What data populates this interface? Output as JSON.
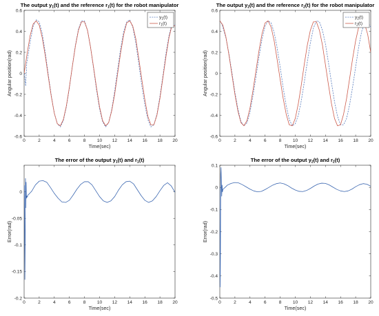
{
  "figure": {
    "background": "#ffffff",
    "colors": {
      "output": "#5b7fbf",
      "reference": "#cc5a4a",
      "error": "#3a66b0",
      "axis": "#262626"
    }
  },
  "chart_data": [
    {
      "type": "line",
      "title": {
        "pre": "The output y",
        "s1": "1",
        "mid": "(t) and the reference r",
        "s2": "1",
        "post": "(t) for the robot manipulator"
      },
      "xlabel": "Time(sec)",
      "ylabel": "Angular position(rad)",
      "xlim": [
        0,
        20
      ],
      "ylim": [
        -0.6,
        0.6
      ],
      "xticks": [
        0,
        2,
        4,
        6,
        8,
        10,
        12,
        14,
        16,
        18,
        20
      ],
      "xticklabels": [
        "0",
        "2",
        "4",
        "6",
        "8",
        "10",
        "12",
        "14",
        "16",
        "18",
        "20"
      ],
      "yticks": [
        -0.6,
        -0.4,
        -0.2,
        0,
        0.2,
        0.4,
        0.6
      ],
      "yticklabels": [
        "-0.6",
        "-0.4",
        "-0.2",
        "0",
        "0.2",
        "0.4",
        "0.6"
      ],
      "legend_position": "top-right",
      "grid": false,
      "series": [
        {
          "name": {
            "base": "y",
            "sub": "1",
            "tail": "(t)"
          },
          "style": "dashed",
          "color": "#5b7fbf",
          "x": [
            0,
            0.1,
            0.2,
            0.35,
            0.5,
            0.8,
            1.2,
            1.6,
            2.0,
            2.4,
            2.8,
            3.2,
            3.6,
            4.0,
            4.4,
            4.8,
            5.2,
            5.6,
            6.0,
            6.4,
            6.8,
            7.2,
            7.6,
            8.0,
            8.4,
            8.8,
            9.2,
            9.6,
            10.0,
            10.4,
            10.8,
            11.2,
            11.6,
            12.0,
            12.4,
            12.8,
            13.2,
            13.6,
            14.0,
            14.4,
            14.8,
            15.2,
            15.6,
            16.0,
            16.4,
            16.8,
            17.2,
            17.6,
            18.0,
            18.4,
            18.8,
            19.2,
            19.6,
            20.0
          ],
          "y": [
            0.02,
            -0.05,
            -0.12,
            0.1,
            0.16,
            0.3,
            0.45,
            0.51,
            0.49,
            0.38,
            0.2,
            -0.01,
            -0.21,
            -0.38,
            -0.48,
            -0.51,
            -0.45,
            -0.32,
            -0.14,
            0.07,
            0.27,
            0.42,
            0.5,
            0.5,
            0.41,
            0.25,
            0.05,
            -0.16,
            -0.34,
            -0.46,
            -0.51,
            -0.47,
            -0.35,
            -0.17,
            0.04,
            0.24,
            0.4,
            0.49,
            0.51,
            0.44,
            0.29,
            0.09,
            -0.12,
            -0.3,
            -0.44,
            -0.51,
            -0.49,
            -0.39,
            -0.22,
            -0.02,
            0.19,
            0.36,
            0.47,
            0.46
          ]
        },
        {
          "name": {
            "base": "r",
            "sub": "1",
            "tail": "(t)"
          },
          "style": "solid",
          "color": "#cc5a4a",
          "x": [
            0,
            0.4,
            0.8,
            1.2,
            1.6,
            2.0,
            2.4,
            2.8,
            3.2,
            3.6,
            4.0,
            4.4,
            4.8,
            5.2,
            5.6,
            6.0,
            6.4,
            6.8,
            7.2,
            7.6,
            8.0,
            8.4,
            8.8,
            9.2,
            9.6,
            10.0,
            10.4,
            10.8,
            11.2,
            11.6,
            12.0,
            12.4,
            12.8,
            13.2,
            13.6,
            14.0,
            14.4,
            14.8,
            15.2,
            15.6,
            16.0,
            16.4,
            16.8,
            17.2,
            17.6,
            18.0,
            18.4,
            18.8,
            19.2,
            19.6,
            20.0
          ],
          "y": [
            0.0,
            0.19,
            0.36,
            0.47,
            0.5,
            0.46,
            0.34,
            0.17,
            -0.03,
            -0.22,
            -0.38,
            -0.48,
            -0.5,
            -0.44,
            -0.31,
            -0.13,
            0.07,
            0.26,
            0.41,
            0.49,
            0.49,
            0.41,
            0.25,
            0.06,
            -0.14,
            -0.32,
            -0.45,
            -0.5,
            -0.47,
            -0.36,
            -0.2,
            0.0,
            0.2,
            0.37,
            0.48,
            0.5,
            0.45,
            0.33,
            0.14,
            -0.06,
            -0.25,
            -0.41,
            -0.49,
            -0.49,
            -0.4,
            -0.24,
            -0.04,
            0.16,
            0.34,
            0.46,
            0.45
          ]
        }
      ]
    },
    {
      "type": "line",
      "title": {
        "pre": "The output y",
        "s1": "2",
        "mid": "(t) and the reference r",
        "s2": "2",
        "post": "(t) for the robot manipulator"
      },
      "xlabel": "Time(sec)",
      "ylabel": "Angular position(rad)",
      "xlim": [
        0,
        20
      ],
      "ylim": [
        -0.6,
        0.6
      ],
      "xticks": [
        0,
        2,
        4,
        6,
        8,
        10,
        12,
        14,
        16,
        18,
        20
      ],
      "xticklabels": [
        "0",
        "2",
        "4",
        "6",
        "8",
        "10",
        "12",
        "14",
        "16",
        "18",
        "20"
      ],
      "yticks": [
        -0.6,
        -0.4,
        -0.2,
        0,
        0.2,
        0.4,
        0.6
      ],
      "yticklabels": [
        "-0.6",
        "-0.4",
        "-0.2",
        "0",
        "0.2",
        "0.4",
        "0.6"
      ],
      "legend_position": "top-right",
      "grid": false,
      "series": [
        {
          "name": {
            "base": "y",
            "sub": "2",
            "tail": "(t)"
          },
          "style": "dashed",
          "color": "#5b7fbf",
          "x": [
            0,
            0.2,
            0.4,
            0.8,
            1.2,
            1.6,
            2.0,
            2.4,
            2.8,
            3.2,
            3.6,
            4.0,
            4.4,
            4.8,
            5.2,
            5.6,
            6.0,
            6.4,
            6.8,
            7.2,
            7.6,
            8.0,
            8.4,
            8.8,
            9.2,
            9.6,
            10.0,
            10.4,
            10.8,
            11.2,
            11.6,
            12.0,
            12.4,
            12.8,
            13.2,
            13.6,
            14.0,
            14.4,
            14.8,
            15.2,
            15.6,
            16.0,
            16.4,
            16.8,
            17.2,
            17.6,
            18.0,
            18.4,
            18.8,
            19.2,
            19.6,
            20.0
          ],
          "y": [
            0.5,
            0.48,
            0.44,
            0.34,
            0.19,
            0.01,
            -0.18,
            -0.34,
            -0.46,
            -0.5,
            -0.47,
            -0.37,
            -0.21,
            -0.03,
            0.16,
            0.33,
            0.45,
            0.5,
            0.48,
            0.39,
            0.24,
            0.06,
            -0.14,
            -0.31,
            -0.44,
            -0.5,
            -0.48,
            -0.4,
            -0.26,
            -0.08,
            0.11,
            0.29,
            0.43,
            0.5,
            0.49,
            0.41,
            0.28,
            0.1,
            -0.09,
            -0.27,
            -0.41,
            -0.49,
            -0.49,
            -0.43,
            -0.3,
            -0.13,
            0.06,
            0.25,
            0.4,
            0.48,
            0.49,
            0.44
          ]
        },
        {
          "name": {
            "base": "r",
            "sub": "2",
            "tail": "(t)"
          },
          "style": "solid",
          "color": "#cc5a4a",
          "x": [
            0,
            0.4,
            0.8,
            1.2,
            1.6,
            2.0,
            2.4,
            2.8,
            3.2,
            3.6,
            4.0,
            4.4,
            4.8,
            5.2,
            5.6,
            6.0,
            6.4,
            6.8,
            7.2,
            7.6,
            8.0,
            8.4,
            8.8,
            9.2,
            9.6,
            10.0,
            10.4,
            10.8,
            11.2,
            11.6,
            12.0,
            12.4,
            12.8,
            13.2,
            13.6,
            14.0,
            14.4,
            14.8,
            15.2,
            15.6,
            16.0,
            16.4,
            16.8,
            17.2,
            17.6,
            18.0,
            18.4,
            18.8,
            19.2,
            19.6,
            20.0
          ],
          "y": [
            0.5,
            0.46,
            0.35,
            0.18,
            -0.01,
            -0.2,
            -0.36,
            -0.47,
            -0.5,
            -0.45,
            -0.33,
            -0.16,
            0.03,
            0.22,
            0.38,
            0.48,
            0.5,
            0.44,
            0.31,
            0.13,
            -0.06,
            -0.24,
            -0.39,
            -0.49,
            -0.5,
            -0.43,
            -0.29,
            -0.11,
            0.09,
            0.27,
            0.41,
            0.49,
            0.49,
            0.41,
            0.27,
            0.08,
            -0.11,
            -0.29,
            -0.43,
            -0.5,
            -0.49,
            -0.39,
            -0.24,
            -0.05,
            0.14,
            0.31,
            0.44,
            0.5,
            0.47,
            0.37,
            0.2
          ]
        }
      ]
    },
    {
      "type": "line",
      "title": {
        "pre": "The error of the output y",
        "s1": "1",
        "mid": "(t) and r",
        "s2": "1",
        "post": "(t)"
      },
      "xlabel": "Time(sec)",
      "ylabel": "Error(rad)",
      "xlim": [
        0,
        20
      ],
      "ylim": [
        -0.2,
        0.05
      ],
      "xticks": [
        0,
        2,
        4,
        6,
        8,
        10,
        12,
        14,
        16,
        18,
        20
      ],
      "xticklabels": [
        "0",
        "2",
        "4",
        "6",
        "8",
        "10",
        "12",
        "14",
        "16",
        "18",
        "20"
      ],
      "yticks": [
        -0.2,
        -0.15,
        -0.1,
        -0.05,
        0
      ],
      "yticklabels": [
        "-0.2",
        "-0.15",
        "-0.1",
        "-0.05",
        "0"
      ],
      "legend_position": "none",
      "grid": false,
      "series": [
        {
          "style": "solid",
          "color": "#3a66b0",
          "x": [
            0,
            0.03,
            0.06,
            0.1,
            0.14,
            0.18,
            0.22,
            0.26,
            0.3,
            0.36,
            0.42,
            0.5,
            0.6,
            0.8,
            1.0,
            1.5,
            2.0,
            2.5,
            3.0,
            3.5,
            4.0,
            4.5,
            5.0,
            5.5,
            6.0,
            6.5,
            7.0,
            7.5,
            8.0,
            8.5,
            9.0,
            9.5,
            10.0,
            10.5,
            11.0,
            11.5,
            12.0,
            12.5,
            13.0,
            13.5,
            14.0,
            14.5,
            15.0,
            15.5,
            16.0,
            16.5,
            17.0,
            17.5,
            18.0,
            18.5,
            19.0,
            19.5,
            20.0
          ],
          "y": [
            0.0,
            0.012,
            -0.04,
            -0.165,
            -0.09,
            0.025,
            -0.03,
            0.018,
            -0.012,
            -0.008,
            -0.01,
            -0.006,
            -0.005,
            -0.002,
            0.001,
            0.013,
            0.02,
            0.021,
            0.018,
            0.008,
            -0.003,
            -0.012,
            -0.019,
            -0.02,
            -0.016,
            -0.006,
            0.005,
            0.014,
            0.019,
            0.019,
            0.013,
            0.002,
            -0.009,
            -0.017,
            -0.02,
            -0.017,
            -0.009,
            0.003,
            0.013,
            0.019,
            0.02,
            0.015,
            0.004,
            -0.007,
            -0.016,
            -0.02,
            -0.017,
            -0.009,
            0.002,
            0.012,
            0.017,
            0.011,
            -0.001
          ]
        }
      ]
    },
    {
      "type": "line",
      "title": {
        "pre": "The error of the output y",
        "s1": "2",
        "mid": "(t) and r",
        "s2": "2",
        "post": "(t)"
      },
      "xlabel": "Time(sec)",
      "ylabel": "Error(rad)",
      "xlim": [
        0,
        20
      ],
      "ylim": [
        -0.5,
        0.1
      ],
      "xticks": [
        0,
        2,
        4,
        6,
        8,
        10,
        12,
        14,
        16,
        18,
        20
      ],
      "xticklabels": [
        "0",
        "2",
        "4",
        "6",
        "8",
        "10",
        "12",
        "14",
        "16",
        "18",
        "20"
      ],
      "yticks": [
        -0.5,
        -0.4,
        -0.3,
        -0.2,
        -0.1,
        0,
        0.1
      ],
      "yticklabels": [
        "-0.5",
        "-0.4",
        "-0.3",
        "-0.2",
        "-0.1",
        "0",
        "0.1"
      ],
      "legend_position": "none",
      "grid": false,
      "series": [
        {
          "style": "solid",
          "color": "#3a66b0",
          "x": [
            0,
            0.04,
            0.08,
            0.12,
            0.16,
            0.2,
            0.25,
            0.3,
            0.35,
            0.4,
            0.5,
            0.7,
            1.0,
            1.5,
            2.0,
            2.5,
            3.0,
            3.5,
            4.0,
            4.5,
            5.0,
            5.5,
            6.0,
            6.5,
            7.0,
            7.5,
            8.0,
            8.5,
            9.0,
            9.5,
            10.0,
            10.5,
            11.0,
            11.5,
            12.0,
            12.5,
            13.0,
            13.5,
            14.0,
            14.5,
            15.0,
            15.5,
            16.0,
            16.5,
            17.0,
            17.5,
            18.0,
            18.5,
            19.0,
            19.5,
            20.0
          ],
          "y": [
            0.0,
            -0.45,
            -0.3,
            0.06,
            0.09,
            0.03,
            -0.04,
            0.01,
            -0.02,
            -0.01,
            -0.006,
            0.0,
            0.01,
            0.018,
            0.022,
            0.02,
            0.012,
            0.002,
            -0.008,
            -0.016,
            -0.02,
            -0.018,
            -0.01,
            0.0,
            0.01,
            0.017,
            0.02,
            0.016,
            0.008,
            -0.003,
            -0.012,
            -0.018,
            -0.019,
            -0.014,
            -0.005,
            0.006,
            0.015,
            0.019,
            0.018,
            0.011,
            0.001,
            -0.009,
            -0.016,
            -0.019,
            -0.016,
            -0.008,
            0.003,
            0.012,
            0.017,
            0.014,
            0.005
          ]
        }
      ]
    }
  ]
}
